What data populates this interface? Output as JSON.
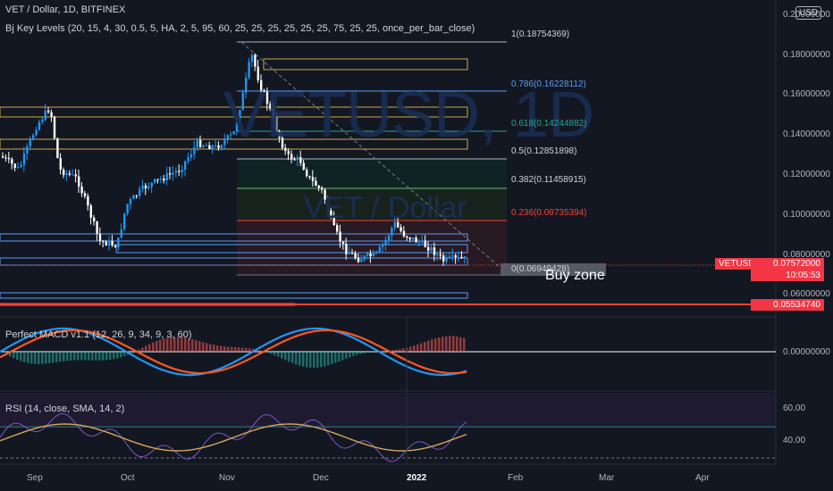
{
  "header": {
    "symbol_line": "VET / Dollar, 1D, BITFINEX",
    "indicator_line": "Bj Key Levels (20, 15, 4, 30, 0.5, 5, HA, 2, 5, 95, 60, 25, 25, 25, 25, 25, 25, 75, 25, 25, once_per_bar_close)",
    "currency_badge": "USD"
  },
  "watermark": {
    "ticker": "VETUSD, 1D",
    "name": "VET / Dollar"
  },
  "price_axis": {
    "labels": [
      "0.20000000",
      "0.18000000",
      "0.16000000",
      "0.14000000",
      "0.12000000",
      "0.10000000",
      "0.08000000",
      "0.06000000",
      "0.00000000",
      "60.00",
      "40.00"
    ]
  },
  "price_tags": {
    "symbol": "VETUSD",
    "last_price": "0.07572000",
    "countdown": "10:05:53",
    "level": "0.05534740"
  },
  "fib_levels": [
    {
      "label": "1(0.18754369)",
      "color": "#b2b5be"
    },
    {
      "label": "0.786(0.16228112)",
      "color": "#5b9cf6"
    },
    {
      "label": "0.618(0.14244882)",
      "color": "#26a69a"
    },
    {
      "label": "0.5(0.12851898)",
      "color": "#b2b5be"
    },
    {
      "label": "0.382(0.11458915)",
      "color": "#b2b5be"
    },
    {
      "label": "0.236(0.09735394)",
      "color": "#f44336"
    },
    {
      "label": "0(0.06949428)",
      "color": "#787b86"
    }
  ],
  "annotation": {
    "buy_zone": "Buy zone"
  },
  "panes": {
    "macd_label": "Perfect MACD v1.1 (12, 26, 9, 34, 9, 3, 60)",
    "rsi_label": "RSI (14, close, SMA, 14, 2)"
  },
  "time_axis": {
    "labels": [
      "Sep",
      "Oct",
      "Nov",
      "Dec",
      "2022",
      "Feb",
      "Mar",
      "Apr"
    ]
  },
  "colors": {
    "background": "#131722",
    "up": "#2196f3",
    "down": "#ffffff",
    "accent_red": "#f44336",
    "fib_line": "#5b9cf6"
  }
}
